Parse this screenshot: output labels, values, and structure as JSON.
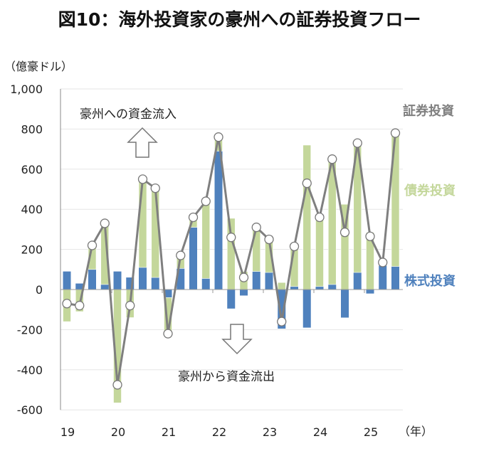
{
  "title": "図10：海外投資家の豪州への証券投資フロー",
  "unit_label": "（億豪ドル）",
  "x_unit_label": "（年）",
  "annotations": {
    "inflow": "豪州への資金流入",
    "outflow": "豪州から資金流出"
  },
  "legend": {
    "total": "証券投資",
    "bond": "債券投資",
    "stock": "株式投資"
  },
  "colors": {
    "total": "#7f7f7f",
    "bond": "#c4d79b",
    "stock": "#4f81bd"
  },
  "chart_data": {
    "type": "bar",
    "stacked": true,
    "title": "図10：海外投資家の豪州への証券投資フロー",
    "ylabel": "（億豪ドル）",
    "xlabel": "（年）",
    "ylim": [
      -600,
      1000
    ],
    "yticks": [
      "-600",
      "-400",
      "-200",
      "0",
      "200",
      "400",
      "600",
      "800",
      "1,000"
    ],
    "ytick_values": [
      -600,
      -400,
      -200,
      0,
      200,
      400,
      600,
      800,
      1000
    ],
    "year_labels": [
      "19",
      "20",
      "21",
      "22",
      "23",
      "24",
      "25"
    ],
    "grid": true,
    "categories": [
      "19Q1",
      "19Q2",
      "19Q3",
      "19Q4",
      "20Q1",
      "20Q2",
      "20Q3",
      "20Q4",
      "21Q1",
      "21Q2",
      "21Q3",
      "21Q4",
      "22Q1",
      "22Q2",
      "22Q3",
      "22Q4",
      "23Q1",
      "23Q2",
      "23Q3",
      "23Q4",
      "24Q1",
      "24Q2",
      "24Q3",
      "24Q4",
      "25Q1",
      "25Q2",
      "25Q3"
    ],
    "series": [
      {
        "name": "株式投資",
        "type": "bar",
        "values": [
          90,
          30,
          100,
          25,
          90,
          60,
          110,
          60,
          -40,
          105,
          310,
          55,
          690,
          -95,
          -30,
          90,
          85,
          -195,
          15,
          -190,
          15,
          25,
          -140,
          85,
          -20,
          120,
          115
        ]
      },
      {
        "name": "債券投資",
        "type": "bar",
        "values": [
          -160,
          -110,
          120,
          305,
          -565,
          -140,
          440,
          445,
          -180,
          65,
          50,
          385,
          70,
          355,
          90,
          220,
          165,
          35,
          200,
          720,
          345,
          625,
          425,
          645,
          285,
          15,
          665
        ]
      },
      {
        "name": "証券投資",
        "type": "line",
        "values": [
          -70,
          -80,
          220,
          330,
          -475,
          -80,
          550,
          505,
          -220,
          170,
          360,
          440,
          760,
          260,
          60,
          310,
          250,
          -160,
          215,
          530,
          360,
          650,
          285,
          730,
          265,
          135,
          780
        ]
      }
    ],
    "legend_placement": "right"
  }
}
